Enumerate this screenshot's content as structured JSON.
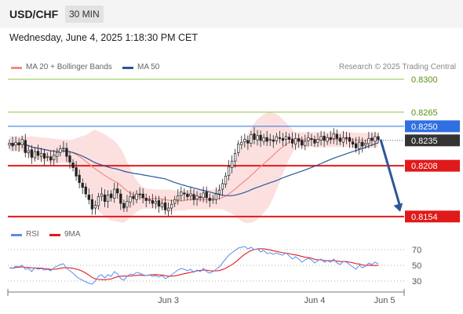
{
  "header": {
    "symbol": "USD/CHF",
    "timeframe": "30 MIN"
  },
  "datetime": "Wednesday, June 4, 2025 1:18:30 PM CET",
  "legend": {
    "ma20": "MA 20 + Bollinger Bands",
    "ma50": "MA 50",
    "credit": "Research © 2025 Trading Central",
    "colors": {
      "ma20": "#f28b82",
      "ma50": "#2b5797",
      "bands": "#fbd5d5"
    }
  },
  "chart_data": [
    {
      "type": "candlestick",
      "ylim": [
        0.8148,
        0.8305
      ],
      "x_ticks": [
        {
          "label": "Jun 3",
          "index": 50
        },
        {
          "label": "Jun 4",
          "index": 96
        },
        {
          "label": "Jun 5",
          "index": 118
        }
      ],
      "levels": [
        {
          "value": 0.83,
          "label": "0.8300",
          "kind": "resistance",
          "color": "#8cc63f",
          "has_box": false
        },
        {
          "value": 0.8265,
          "label": "0.8265",
          "kind": "resistance",
          "color": "#8cc63f",
          "has_box": false
        },
        {
          "value": 0.825,
          "label": "0.8250",
          "kind": "pivot",
          "color": "#2f6fe0",
          "has_box": true
        },
        {
          "value": 0.8235,
          "label": "0.8235",
          "kind": "last",
          "color": "#333333",
          "has_box": true
        },
        {
          "value": 0.8208,
          "label": "0.8208",
          "kind": "support",
          "color": "#e01a1a",
          "has_box": true
        },
        {
          "value": 0.8154,
          "label": "0.8154",
          "kind": "support",
          "color": "#e01a1a",
          "has_box": true
        }
      ],
      "forecast_arrow": {
        "from": 0.8236,
        "to": 0.8159,
        "color": "#2b5797"
      },
      "series": [
        {
          "name": "MA 20 + Bollinger Bands",
          "color": "#f28b82"
        },
        {
          "name": "MA 50",
          "color": "#2b5797"
        }
      ],
      "close": [
        0.8232,
        0.8229,
        0.8233,
        0.823,
        0.8236,
        0.8222,
        0.8224,
        0.8217,
        0.8223,
        0.8219,
        0.8221,
        0.8216,
        0.8218,
        0.8214,
        0.8219,
        0.8222,
        0.8226,
        0.8227,
        0.8218,
        0.8212,
        0.8206,
        0.8197,
        0.819,
        0.8185,
        0.8178,
        0.8172,
        0.8162,
        0.8166,
        0.8175,
        0.8178,
        0.817,
        0.8177,
        0.8174,
        0.8183,
        0.8179,
        0.8168,
        0.8163,
        0.817,
        0.8175,
        0.8173,
        0.8178,
        0.8177,
        0.8174,
        0.8171,
        0.8172,
        0.8168,
        0.817,
        0.8165,
        0.8168,
        0.8161,
        0.8163,
        0.8167,
        0.8172,
        0.8176,
        0.818,
        0.8178,
        0.8175,
        0.8178,
        0.8172,
        0.8176,
        0.8174,
        0.8179,
        0.8174,
        0.8171,
        0.8173,
        0.8178,
        0.8182,
        0.8189,
        0.8197,
        0.8207,
        0.8213,
        0.8221,
        0.8231,
        0.8233,
        0.8236,
        0.8232,
        0.8241,
        0.8236,
        0.824,
        0.8235,
        0.8238,
        0.8234,
        0.8236,
        0.8234,
        0.8239,
        0.8237,
        0.8235,
        0.8239,
        0.8236,
        0.8232,
        0.8237,
        0.8234,
        0.823,
        0.8234,
        0.8238,
        0.8236,
        0.8232,
        0.8236,
        0.8239,
        0.8235,
        0.8238,
        0.8236,
        0.8242,
        0.8237,
        0.8234,
        0.8238,
        0.8237,
        0.8234,
        0.8231,
        0.8227,
        0.8233,
        0.8229,
        0.8232,
        0.8237,
        0.8235,
        0.8239,
        0.8236
      ]
    },
    {
      "type": "line",
      "ylim": [
        20,
        80
      ],
      "levels": [
        {
          "value": 70,
          "label": "70"
        },
        {
          "value": 50,
          "label": "50"
        },
        {
          "value": 30,
          "label": "30"
        }
      ],
      "series": [
        {
          "name": "RSI",
          "color": "#5b8def"
        },
        {
          "name": "9MA",
          "color": "#e01a1a"
        }
      ],
      "rsi": [
        47,
        46,
        49,
        48,
        50,
        45,
        46,
        42,
        47,
        45,
        46,
        44,
        45,
        43,
        47,
        49,
        51,
        52,
        46,
        43,
        40,
        36,
        33,
        31,
        29,
        27,
        26,
        30,
        36,
        38,
        34,
        38,
        36,
        42,
        39,
        33,
        31,
        36,
        39,
        38,
        41,
        40,
        38,
        37,
        38,
        36,
        37,
        35,
        37,
        33,
        35,
        38,
        41,
        44,
        46,
        45,
        43,
        45,
        41,
        44,
        42,
        46,
        42,
        40,
        42,
        45,
        48,
        53,
        58,
        63,
        66,
        69,
        72,
        73,
        74,
        71,
        73,
        70,
        71,
        67,
        69,
        65,
        66,
        64,
        66,
        64,
        63,
        66,
        62,
        58,
        61,
        58,
        54,
        57,
        59,
        57,
        53,
        56,
        58,
        54,
        56,
        54,
        58,
        53,
        51,
        55,
        54,
        51,
        48,
        45,
        50,
        47,
        49,
        53,
        51,
        54,
        52
      ]
    }
  ],
  "rsi_legend": {
    "rsi": "RSI",
    "ma9": "9MA"
  }
}
